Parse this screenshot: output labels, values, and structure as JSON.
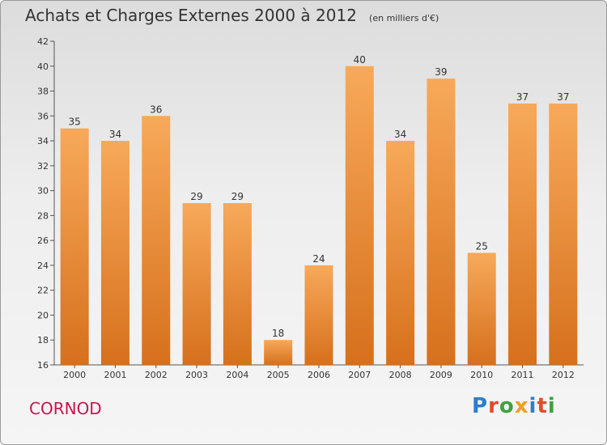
{
  "header": {
    "title": "Achats et Charges Externes 2000 à 2012",
    "subtitle": "(en milliers d'€)"
  },
  "footer": {
    "town": "CORNOD",
    "logo": "Proxiti",
    "logo_letters": [
      "P",
      "r",
      "o",
      "x",
      "i",
      "t",
      "i"
    ]
  },
  "colors": {
    "bar_top": "#f7a95a",
    "bar_bottom": "#d6701c",
    "title": "#333333",
    "town": "#c8154a"
  },
  "chart_data": {
    "type": "bar",
    "categories": [
      "2000",
      "2001",
      "2002",
      "2003",
      "2004",
      "2005",
      "2006",
      "2007",
      "2008",
      "2009",
      "2010",
      "2011",
      "2012"
    ],
    "values": [
      35,
      34,
      36,
      29,
      29,
      18,
      24,
      40,
      34,
      39,
      25,
      37,
      37
    ],
    "title": "Achats et Charges Externes 2000 à 2012",
    "xlabel": "",
    "ylabel": "",
    "ylim": [
      16,
      42
    ],
    "yticks": [
      16,
      18,
      20,
      22,
      24,
      26,
      28,
      30,
      32,
      34,
      36,
      38,
      40,
      42
    ],
    "grid": false,
    "legend": "none"
  }
}
